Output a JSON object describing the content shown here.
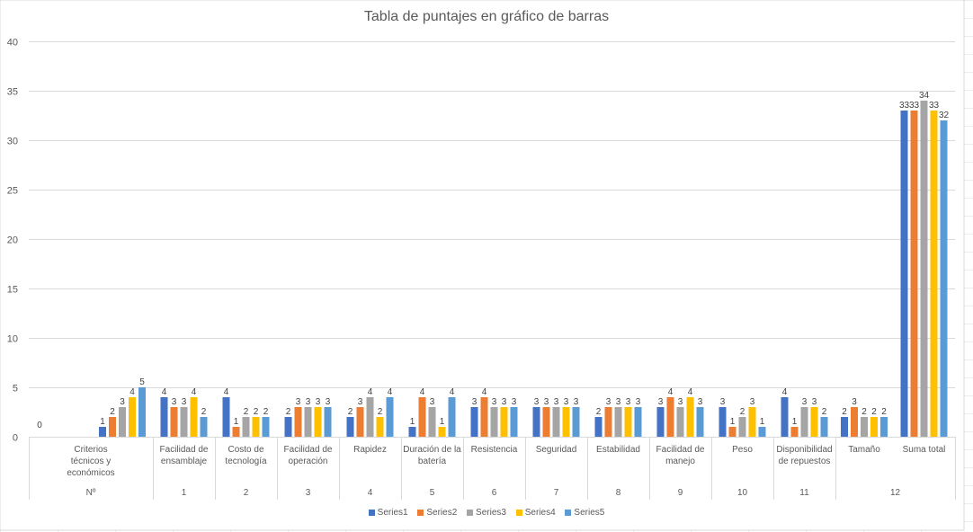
{
  "chart_data": {
    "type": "bar",
    "title": "Tabla de puntajes en gráfico de barras",
    "ylim": [
      0,
      40
    ],
    "yticks": [
      0,
      5,
      10,
      15,
      20,
      25,
      30,
      35,
      40
    ],
    "grid": true,
    "legend_position": "bottom",
    "categories": [
      {
        "label": "Criterios técnicos y económicos",
        "label_lines": [
          "Criterios",
          "técnicos y",
          "económicos"
        ],
        "group": "Nº"
      },
      {
        "label": "Facilidad de ensamblaje",
        "label_lines": [
          "Facilidad de",
          "ensamblaje"
        ],
        "group": "1"
      },
      {
        "label": "Costo de tecnología",
        "label_lines": [
          "Costo de",
          "tecnología"
        ],
        "group": "2"
      },
      {
        "label": "Facilidad de operación",
        "label_lines": [
          "Facilidad de",
          "operación"
        ],
        "group": "3"
      },
      {
        "label": "Rapidez",
        "label_lines": [
          "Rapidez"
        ],
        "group": "4"
      },
      {
        "label": "Duración de la batería",
        "label_lines": [
          "Duración de la",
          "batería"
        ],
        "group": "5"
      },
      {
        "label": "Resistencia",
        "label_lines": [
          "Resistencia"
        ],
        "group": "6"
      },
      {
        "label": "Seguridad",
        "label_lines": [
          "Seguridad"
        ],
        "group": "7"
      },
      {
        "label": "Estabilidad",
        "label_lines": [
          "Estabilidad"
        ],
        "group": "8"
      },
      {
        "label": "Facilidad de manejo",
        "label_lines": [
          "Facilidad de",
          "manejo"
        ],
        "group": "9"
      },
      {
        "label": "Peso",
        "label_lines": [
          "Peso"
        ],
        "group": "10"
      },
      {
        "label": "Disponibilidad de repuestos",
        "label_lines": [
          "Disponibilidad",
          "de repuestos"
        ],
        "group": "11"
      },
      {
        "label": "Tamaño",
        "label_lines": [
          "Tamaño"
        ],
        "group": "12"
      },
      {
        "label": "Suma total",
        "label_lines": [
          "Suma total"
        ],
        "group": "12"
      }
    ],
    "first_category_label": "0",
    "series": [
      {
        "name": "Series1",
        "color": "#4472C4",
        "values": [
          1,
          4,
          4,
          2,
          2,
          1,
          3,
          3,
          2,
          3,
          3,
          4,
          2,
          33
        ]
      },
      {
        "name": "Series2",
        "color": "#ED7D31",
        "values": [
          2,
          3,
          1,
          3,
          3,
          4,
          4,
          3,
          3,
          4,
          1,
          1,
          3,
          33
        ]
      },
      {
        "name": "Series3",
        "color": "#A5A5A5",
        "values": [
          3,
          3,
          2,
          3,
          4,
          3,
          3,
          3,
          3,
          3,
          2,
          3,
          2,
          34
        ]
      },
      {
        "name": "Series4",
        "color": "#FFC000",
        "values": [
          4,
          4,
          2,
          3,
          2,
          1,
          3,
          3,
          3,
          4,
          3,
          3,
          2,
          33
        ]
      },
      {
        "name": "Series5",
        "color": "#5B9BD5",
        "values": [
          5,
          2,
          2,
          3,
          4,
          4,
          3,
          3,
          3,
          3,
          1,
          2,
          2,
          32
        ]
      }
    ]
  }
}
